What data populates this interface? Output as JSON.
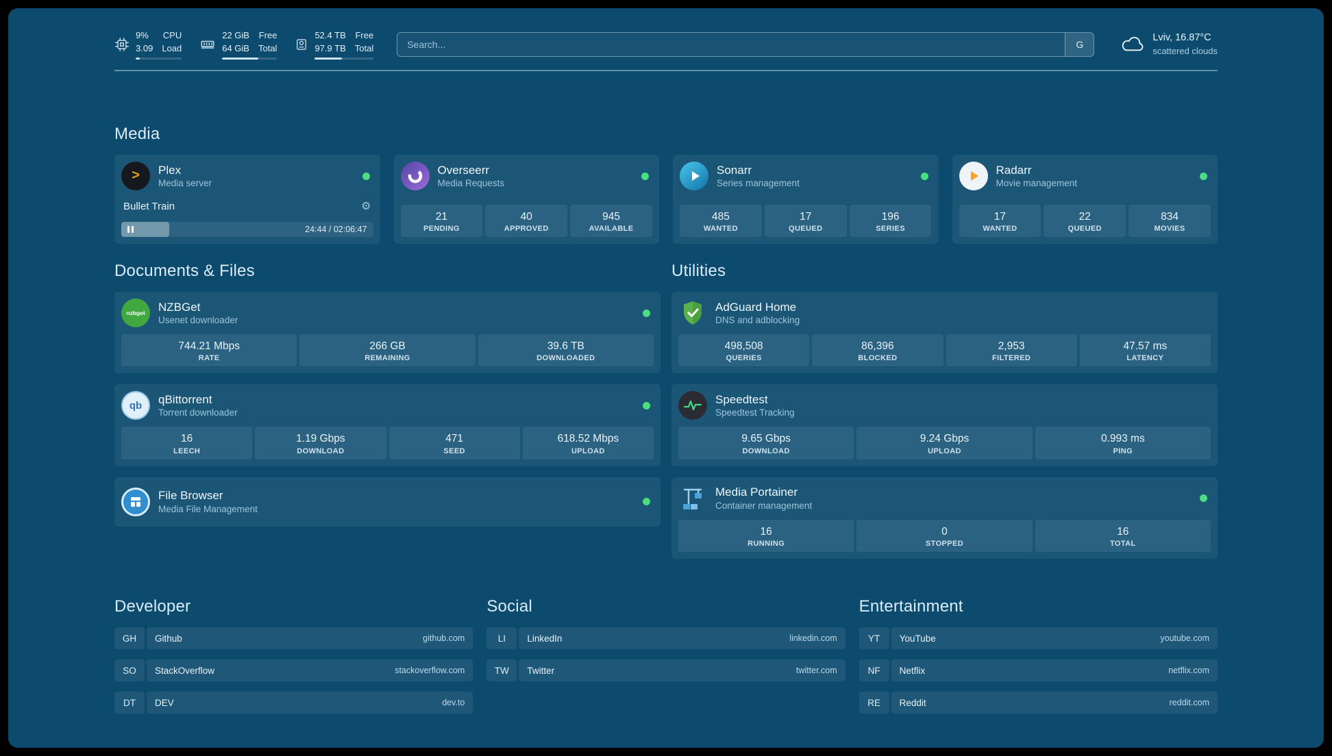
{
  "colors": {
    "background": "#0c4a6e",
    "status_green": "#4ade80",
    "plex_orange": "#e5a00d"
  },
  "icons": {
    "gear": "⚙",
    "plex_chevron": ">"
  },
  "topbar": {
    "cpu": {
      "value_top": "9%",
      "value_bottom": "3.09",
      "label_top": "CPU",
      "label_bottom": "Load",
      "progress": 9
    },
    "memory": {
      "value_top": "22 GiB",
      "value_bottom": "64 GiB",
      "label_top": "Free",
      "label_bottom": "Total",
      "progress": 66
    },
    "disk": {
      "value_top": "52.4 TB",
      "value_bottom": "97.9 TB",
      "label_top": "Free",
      "label_bottom": "Total",
      "progress": 46
    },
    "search": {
      "placeholder": "Search...",
      "button_label": "G"
    },
    "weather": {
      "location": "Lviv, 16.87°C",
      "condition": "scattered clouds"
    }
  },
  "media": {
    "heading": "Media",
    "plex": {
      "title": "Plex",
      "subtitle": "Media server",
      "now_playing": "Bullet Train",
      "time": "24:44 / 02:06:47",
      "progress": 19
    },
    "overseerr": {
      "title": "Overseerr",
      "subtitle": "Media Requests",
      "stats": [
        {
          "value": "21",
          "label": "PENDING"
        },
        {
          "value": "40",
          "label": "APPROVED"
        },
        {
          "value": "945",
          "label": "AVAILABLE"
        }
      ]
    },
    "sonarr": {
      "title": "Sonarr",
      "subtitle": "Series management",
      "stats": [
        {
          "value": "485",
          "label": "WANTED"
        },
        {
          "value": "17",
          "label": "QUEUED"
        },
        {
          "value": "196",
          "label": "SERIES"
        }
      ]
    },
    "radarr": {
      "title": "Radarr",
      "subtitle": "Movie management",
      "stats": [
        {
          "value": "17",
          "label": "WANTED"
        },
        {
          "value": "22",
          "label": "QUEUED"
        },
        {
          "value": "834",
          "label": "MOVIES"
        }
      ]
    }
  },
  "documents": {
    "heading": "Documents & Files",
    "nzbget": {
      "title": "NZBGet",
      "subtitle": "Usenet downloader",
      "icon_text": "nzbget",
      "stats": [
        {
          "value": "744.21 Mbps",
          "label": "RATE"
        },
        {
          "value": "266 GB",
          "label": "REMAINING"
        },
        {
          "value": "39.6 TB",
          "label": "DOWNLOADED"
        }
      ]
    },
    "qbittorrent": {
      "title": "qBittorrent",
      "subtitle": "Torrent downloader",
      "icon_text": "qb",
      "stats": [
        {
          "value": "16",
          "label": "LEECH"
        },
        {
          "value": "1.19 Gbps",
          "label": "DOWNLOAD"
        },
        {
          "value": "471",
          "label": "SEED"
        },
        {
          "value": "618.52 Mbps",
          "label": "UPLOAD"
        }
      ]
    },
    "filebrowser": {
      "title": "File Browser",
      "subtitle": "Media File Management"
    }
  },
  "utilities": {
    "heading": "Utilities",
    "adguard": {
      "title": "AdGuard Home",
      "subtitle": "DNS and adblocking",
      "stats": [
        {
          "value": "498,508",
          "label": "QUERIES"
        },
        {
          "value": "86,396",
          "label": "BLOCKED"
        },
        {
          "value": "2,953",
          "label": "FILTERED"
        },
        {
          "value": "47.57 ms",
          "label": "LATENCY"
        }
      ]
    },
    "speedtest": {
      "title": "Speedtest",
      "subtitle": "Speedtest Tracking",
      "stats": [
        {
          "value": "9.65 Gbps",
          "label": "DOWNLOAD"
        },
        {
          "value": "9.24 Gbps",
          "label": "UPLOAD"
        },
        {
          "value": "0.993 ms",
          "label": "PING"
        }
      ]
    },
    "portainer": {
      "title": "Media Portainer",
      "subtitle": "Container management",
      "stats": [
        {
          "value": "16",
          "label": "RUNNING"
        },
        {
          "value": "0",
          "label": "STOPPED"
        },
        {
          "value": "16",
          "label": "TOTAL"
        }
      ]
    }
  },
  "bookmarks": [
    {
      "heading": "Developer",
      "items": [
        {
          "abbr": "GH",
          "name": "Github",
          "domain": "github.com"
        },
        {
          "abbr": "SO",
          "name": "StackOverflow",
          "domain": "stackoverflow.com"
        },
        {
          "abbr": "DT",
          "name": "DEV",
          "domain": "dev.to"
        }
      ]
    },
    {
      "heading": "Social",
      "items": [
        {
          "abbr": "LI",
          "name": "LinkedIn",
          "domain": "linkedin.com"
        },
        {
          "abbr": "TW",
          "name": "Twitter",
          "domain": "twitter.com"
        }
      ]
    },
    {
      "heading": "Entertainment",
      "items": [
        {
          "abbr": "YT",
          "name": "YouTube",
          "domain": "youtube.com"
        },
        {
          "abbr": "NF",
          "name": "Netflix",
          "domain": "netflix.com"
        },
        {
          "abbr": "RE",
          "name": "Reddit",
          "domain": "reddit.com"
        }
      ]
    }
  ]
}
